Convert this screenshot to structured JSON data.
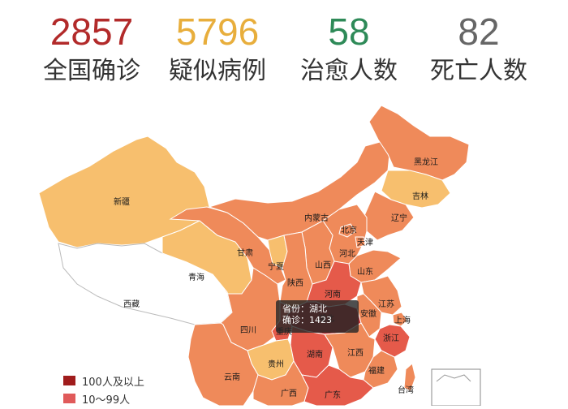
{
  "stats": [
    {
      "value": "2857",
      "label": "全国确诊",
      "color": "#b22a2a"
    },
    {
      "value": "5796",
      "label": "疑似病例",
      "color": "#e8ae3c"
    },
    {
      "value": "58",
      "label": "治愈人数",
      "color": "#2e8a58"
    },
    {
      "value": "82",
      "label": "死亡人数",
      "color": "#666666"
    }
  ],
  "map": {
    "provinces": [
      {
        "key": "xinjiang",
        "label": "新疆",
        "color": "#f7bf6e"
      },
      {
        "key": "xizang",
        "label": "西藏",
        "color": "#ffffff"
      },
      {
        "key": "qinghai",
        "label": "青海",
        "color": "#f7bf6e"
      },
      {
        "key": "gansu",
        "label": "甘肃",
        "color": "#ef8a5a"
      },
      {
        "key": "neimenggu",
        "label": "内蒙古",
        "color": "#ef8a5a"
      },
      {
        "key": "heilongjiang",
        "label": "黑龙江",
        "color": "#ef8a5a"
      },
      {
        "key": "jilin",
        "label": "吉林",
        "color": "#f7bf6e"
      },
      {
        "key": "liaoning",
        "label": "辽宁",
        "color": "#ef8a5a"
      },
      {
        "key": "beijing",
        "label": "北京",
        "color": "#ef8a5a"
      },
      {
        "key": "tianjin",
        "label": "天津",
        "color": "#ef8a5a"
      },
      {
        "key": "hebei",
        "label": "河北",
        "color": "#ef8a5a"
      },
      {
        "key": "shanxi",
        "label": "山西",
        "color": "#ef8a5a"
      },
      {
        "key": "shandong",
        "label": "山东",
        "color": "#ef8a5a"
      },
      {
        "key": "ningxia",
        "label": "宁夏",
        "color": "#f7bf6e"
      },
      {
        "key": "shaanxi",
        "label": "陕西",
        "color": "#ef8a5a"
      },
      {
        "key": "henan",
        "label": "河南",
        "color": "#e55a4a"
      },
      {
        "key": "hubei",
        "label": "湖北",
        "color": "#c43131"
      },
      {
        "key": "jiangsu",
        "label": "江苏",
        "color": "#ef8a5a"
      },
      {
        "key": "anhui",
        "label": "安徽",
        "color": "#ef8a5a"
      },
      {
        "key": "shanghai",
        "label": "上海",
        "color": "#ef8a5a"
      },
      {
        "key": "sichuan",
        "label": "四川",
        "color": "#ef8a5a"
      },
      {
        "key": "chongqing",
        "label": "重庆",
        "color": "#e55a4a"
      },
      {
        "key": "hunan",
        "label": "湖南",
        "color": "#e55a4a"
      },
      {
        "key": "jiangxi",
        "label": "江西",
        "color": "#ef8a5a"
      },
      {
        "key": "zhejiang",
        "label": "浙江",
        "color": "#e55a4a"
      },
      {
        "key": "fujian",
        "label": "福建",
        "color": "#ef8a5a"
      },
      {
        "key": "guizhou",
        "label": "贵州",
        "color": "#f7bf6e"
      },
      {
        "key": "yunnan",
        "label": "云南",
        "color": "#ef8a5a"
      },
      {
        "key": "guangxi",
        "label": "广西",
        "color": "#ef8a5a"
      },
      {
        "key": "guangdong",
        "label": "广东",
        "color": "#e55a4a"
      },
      {
        "key": "taiwan",
        "label": "台湾",
        "color": "#ef8a5a"
      }
    ]
  },
  "tooltip": {
    "province_line": "省份：湖北",
    "confirmed_line": "确诊：1423"
  },
  "legend": [
    {
      "label": "100人及以上",
      "color": "#a01c1c"
    },
    {
      "label": "10～99人",
      "color": "#e05a5a"
    }
  ]
}
